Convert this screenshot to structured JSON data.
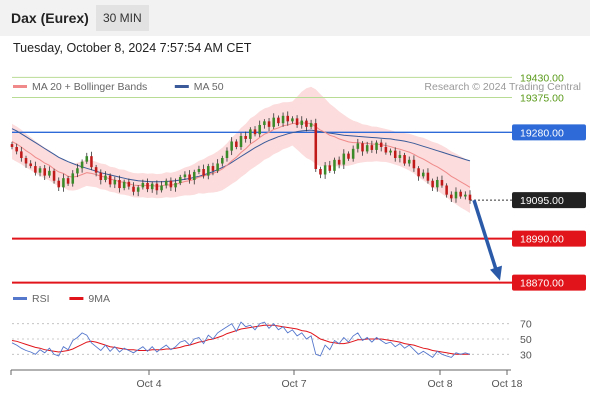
{
  "header": {
    "instrument": "Dax (Eurex)",
    "timeframe": "30 MIN",
    "datetime": "Tuesday, October 8, 2024 7:57:54 AM CET"
  },
  "chart_data": [
    {
      "type": "candlestick",
      "legend": [
        {
          "name": "MA 20 + Bollinger Bands",
          "color": "#f08a8a"
        },
        {
          "name": "MA 50",
          "color": "#3a5a99"
        }
      ],
      "legend_position": "top-left",
      "watermark": "Research © 2024 Trading Central",
      "ylim": [
        18850,
        19450
      ],
      "levels": [
        {
          "value": 19430,
          "label": "19430.00",
          "kind": "resistance-minor",
          "color": "#5a9a1a"
        },
        {
          "value": 19375,
          "label": "19375.00",
          "kind": "resistance-minor",
          "color": "#5a9a1a"
        },
        {
          "value": 19280,
          "label": "19280.00",
          "kind": "pivot",
          "color": "#2f6bd8"
        },
        {
          "value": 19095,
          "label": "19095.00",
          "kind": "last",
          "color": "#222222"
        },
        {
          "value": 18990,
          "label": "18990.00",
          "kind": "support",
          "color": "#e0141a"
        },
        {
          "value": 18870,
          "label": "18870.00",
          "kind": "support",
          "color": "#e0141a"
        }
      ],
      "close": [
        19240,
        19228,
        19210,
        19195,
        19188,
        19170,
        19182,
        19162,
        19175,
        19148,
        19130,
        19155,
        19140,
        19168,
        19182,
        19200,
        19215,
        19185,
        19170,
        19150,
        19162,
        19138,
        19150,
        19128,
        19145,
        19132,
        19118,
        19130,
        19142,
        19125,
        19140,
        19122,
        19135,
        19148,
        19130,
        19142,
        19158,
        19165,
        19150,
        19172,
        19180,
        19162,
        19188,
        19175,
        19195,
        19210,
        19230,
        19255,
        19240,
        19270,
        19262,
        19288,
        19275,
        19300,
        19310,
        19295,
        19320,
        19305,
        19325,
        19310,
        19318,
        19300,
        19312,
        19295,
        19305,
        19180,
        19165,
        19190,
        19175,
        19205,
        19192,
        19222,
        19208,
        19235,
        19250,
        19228,
        19245,
        19232,
        19252,
        19240,
        19225,
        19230,
        19210,
        19218,
        19195,
        19205,
        19182,
        19160,
        19170,
        19148,
        19130,
        19150,
        19135,
        19110,
        19100,
        19118,
        19105,
        19110,
        19095
      ],
      "ma20": [
        19255,
        19248,
        19240,
        19230,
        19222,
        19212,
        19205,
        19196,
        19190,
        19180,
        19172,
        19168,
        19160,
        19158,
        19160,
        19165,
        19170,
        19168,
        19165,
        19160,
        19158,
        19152,
        19150,
        19145,
        19144,
        19140,
        19136,
        19135,
        19136,
        19134,
        19135,
        19133,
        19134,
        19137,
        19136,
        19138,
        19142,
        19146,
        19148,
        19152,
        19158,
        19160,
        19165,
        19168,
        19173,
        19180,
        19190,
        19202,
        19212,
        19225,
        19235,
        19248,
        19256,
        19266,
        19275,
        19280,
        19288,
        19292,
        19298,
        19300,
        19304,
        19305,
        19306,
        19305,
        19304,
        19295,
        19286,
        19280,
        19272,
        19268,
        19262,
        19258,
        19254,
        19252,
        19252,
        19250,
        19250,
        19248,
        19248,
        19246,
        19244,
        19241,
        19237,
        19234,
        19230,
        19226,
        19220,
        19213,
        19207,
        19200,
        19192,
        19186,
        19178,
        19170,
        19160,
        19153,
        19145,
        19138,
        19130
      ],
      "ma50": [
        19290,
        19284,
        19276,
        19268,
        19260,
        19252,
        19244,
        19236,
        19228,
        19220,
        19212,
        19206,
        19200,
        19195,
        19190,
        19186,
        19182,
        19178,
        19174,
        19170,
        19167,
        19164,
        19161,
        19158,
        19155,
        19152,
        19150,
        19148,
        19147,
        19146,
        19145,
        19145,
        19145,
        19146,
        19147,
        19148,
        19150,
        19152,
        19154,
        19157,
        19160,
        19164,
        19168,
        19173,
        19178,
        19184,
        19190,
        19198,
        19206,
        19214,
        19222,
        19230,
        19238,
        19245,
        19252,
        19258,
        19263,
        19268,
        19272,
        19276,
        19279,
        19282,
        19284,
        19285,
        19286,
        19284,
        19282,
        19280,
        19278,
        19276,
        19274,
        19272,
        19271,
        19270,
        19269,
        19268,
        19267,
        19266,
        19265,
        19264,
        19263,
        19262,
        19260,
        19258,
        19256,
        19253,
        19250,
        19246,
        19242,
        19238,
        19234,
        19230,
        19226,
        19222,
        19218,
        19214,
        19210,
        19206,
        19202
      ],
      "bb_width": [
        48,
        48,
        47,
        46,
        45,
        44,
        43,
        42,
        41,
        40,
        39,
        38,
        38,
        37,
        37,
        36,
        36,
        36,
        35,
        35,
        35,
        34,
        34,
        34,
        34,
        33,
        33,
        33,
        33,
        33,
        33,
        33,
        33,
        34,
        34,
        35,
        36,
        38,
        40,
        42,
        44,
        47,
        50,
        52,
        55,
        58,
        60,
        63,
        65,
        67,
        68,
        70,
        70,
        71,
        70,
        69,
        68,
        66,
        64,
        62,
        60,
        72,
        85,
        95,
        100,
        102,
        98,
        92,
        86,
        80,
        75,
        70,
        65,
        60,
        56,
        52,
        50,
        48,
        47,
        46,
        45,
        45,
        45,
        46,
        48,
        50,
        52,
        55,
        58,
        60,
        62,
        64,
        66,
        67,
        68,
        69,
        70,
        70,
        70
      ],
      "x_ticks": [
        "Oct 4",
        "Oct 7",
        "Oct 8",
        "Oct 18"
      ],
      "forecast": {
        "from": 19095,
        "to": 18870
      }
    },
    {
      "type": "line",
      "legend": [
        {
          "name": "RSI",
          "color": "#5577cc"
        },
        {
          "name": "9MA",
          "color": "#e0141a"
        }
      ],
      "ylim": [
        20,
        80
      ],
      "y_ticks": [
        "70",
        "50",
        "30"
      ],
      "series": [
        {
          "name": "RSI",
          "values": [
            45,
            42,
            38,
            35,
            33,
            30,
            36,
            32,
            38,
            30,
            28,
            40,
            36,
            48,
            52,
            58,
            55,
            45,
            40,
            35,
            42,
            34,
            40,
            33,
            38,
            35,
            32,
            36,
            40,
            34,
            40,
            33,
            38,
            42,
            36,
            40,
            46,
            48,
            42,
            50,
            52,
            44,
            55,
            50,
            58,
            62,
            66,
            70,
            60,
            72,
            66,
            68,
            62,
            70,
            72,
            64,
            70,
            62,
            66,
            58,
            62,
            54,
            58,
            50,
            54,
            30,
            28,
            42,
            36,
            48,
            44,
            52,
            46,
            54,
            58,
            48,
            52,
            46,
            52,
            48,
            44,
            46,
            40,
            44,
            38,
            42,
            36,
            30,
            34,
            30,
            26,
            34,
            30,
            28,
            26,
            32,
            30,
            32,
            30
          ]
        },
        {
          "name": "9MA",
          "values": [
            48,
            47,
            45,
            43,
            41,
            39,
            38,
            36,
            35,
            34,
            33,
            34,
            35,
            37,
            40,
            43,
            46,
            47,
            46,
            44,
            42,
            40,
            39,
            38,
            37,
            36,
            36,
            35,
            35,
            35,
            36,
            36,
            36,
            37,
            37,
            38,
            39,
            41,
            42,
            44,
            46,
            47,
            49,
            50,
            52,
            54,
            57,
            59,
            61,
            63,
            64,
            65,
            66,
            67,
            68,
            68,
            68,
            67,
            66,
            65,
            64,
            63,
            61,
            60,
            58,
            54,
            50,
            48,
            46,
            45,
            44,
            44,
            45,
            47,
            49,
            49,
            50,
            50,
            50,
            50,
            49,
            48,
            47,
            46,
            44,
            43,
            42,
            40,
            38,
            37,
            35,
            34,
            33,
            32,
            31,
            30,
            30,
            30,
            30
          ]
        }
      ]
    }
  ]
}
